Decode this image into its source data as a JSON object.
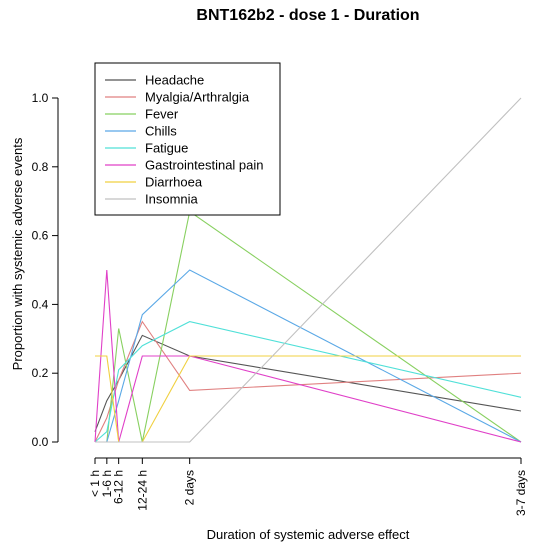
{
  "chart_data": {
    "type": "line",
    "title": "BNT162b2 - dose 1 - Duration",
    "xlabel": "Duration of systemic adverse effect",
    "ylabel": "Proportion with systemic adverse events",
    "categories": [
      "< 1 h",
      "1-6 h",
      "6-12 h",
      "12-24 h",
      "2 days",
      "3-7 days"
    ],
    "x": [
      0,
      0.5,
      1,
      2,
      4,
      18
    ],
    "ylim": [
      0,
      1
    ],
    "yticks": [
      "0.0",
      "0.2",
      "0.4",
      "0.6",
      "0.8",
      "1.0"
    ],
    "ytick_values": [
      0,
      0.2,
      0.4,
      0.6,
      0.8,
      1.0
    ],
    "legend_position": "top-left",
    "series": [
      {
        "name": "Headache",
        "color": "#555555",
        "values": [
          0.03,
          0.12,
          0.18,
          0.31,
          0.25,
          0.09
        ]
      },
      {
        "name": "Myalgia/Arthralgia",
        "color": "#e08080",
        "values": [
          0,
          0.07,
          0.18,
          0.35,
          0.15,
          0.2
        ]
      },
      {
        "name": "Fever",
        "color": "#88d060",
        "values": [
          0,
          0,
          0.33,
          0,
          0.67,
          0
        ]
      },
      {
        "name": "Chills",
        "color": "#5aa8e6",
        "values": [
          0,
          0,
          0.12,
          0.37,
          0.5,
          0
        ]
      },
      {
        "name": "Fatigue",
        "color": "#50e0d8",
        "values": [
          0,
          0.03,
          0.21,
          0.28,
          0.35,
          0.13
        ]
      },
      {
        "name": "Gastrointestinal pain",
        "color": "#e040c8",
        "values": [
          0,
          0.5,
          0,
          0.25,
          0.25,
          0
        ]
      },
      {
        "name": "Diarrhoea",
        "color": "#f0d040",
        "values": [
          0.25,
          0.25,
          0,
          0,
          0.25,
          0.25
        ]
      },
      {
        "name": "Insomnia",
        "color": "#c0c0c0",
        "values": [
          0,
          0,
          0,
          0,
          0,
          1.0
        ]
      }
    ]
  }
}
